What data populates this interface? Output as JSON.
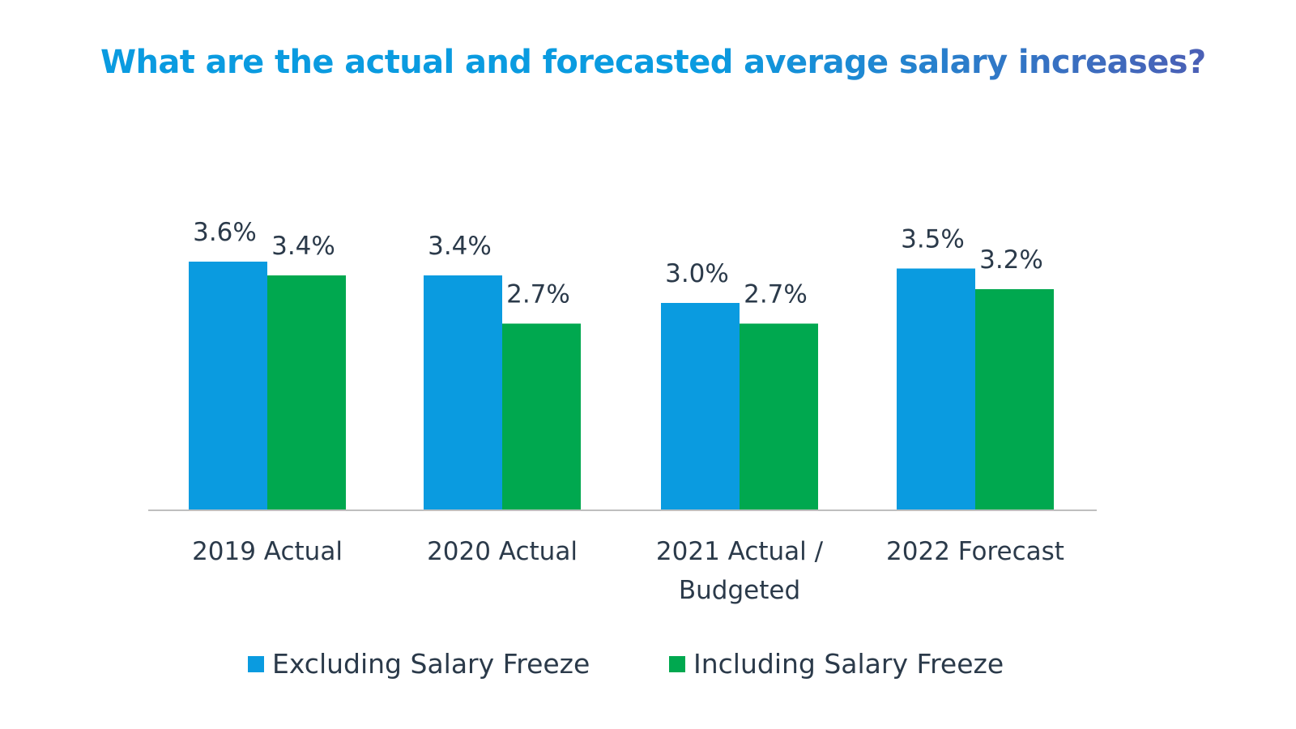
{
  "chart_data": {
    "type": "bar",
    "title": "What are the actual and forecasted average salary increases?",
    "categories": [
      [
        "2019 Actual"
      ],
      [
        "2020 Actual"
      ],
      [
        "2021 Actual /",
        "Budgeted"
      ],
      [
        "2022 Forecast"
      ]
    ],
    "series": [
      {
        "name": "Excluding Salary Freeze",
        "values": [
          3.6,
          3.4,
          3.0,
          3.5
        ],
        "labels": [
          "3.6%",
          "3.4%",
          "3.0%",
          "3.5%"
        ],
        "color": "#0a9be0"
      },
      {
        "name": "Including Salary Freeze",
        "values": [
          3.4,
          2.7,
          2.7,
          3.2
        ],
        "labels": [
          "3.4%",
          "2.7%",
          "2.7%",
          "3.2%"
        ],
        "color": "#00a84f"
      }
    ],
    "ylim": [
      0,
      3.6
    ],
    "grid": false,
    "legend_position": "bottom-center",
    "title_gradient": [
      "#0a9be0",
      "#4b5fb5"
    ]
  }
}
